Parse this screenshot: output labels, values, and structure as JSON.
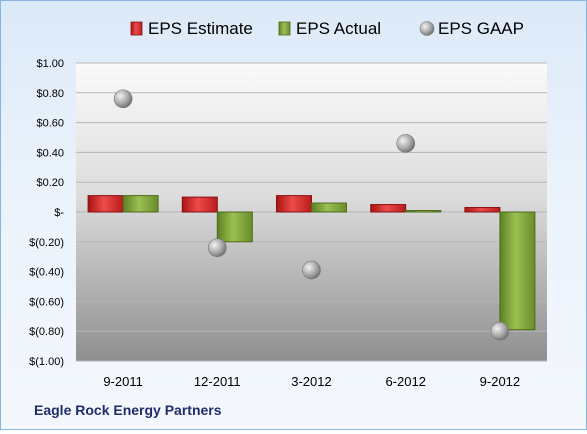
{
  "company_label": "Eagle Rock Energy Partners",
  "chart_data": {
    "type": "bar",
    "categories": [
      "9-2011",
      "12-2011",
      "3-2012",
      "6-2012",
      "9-2012"
    ],
    "series": [
      {
        "name": "EPS Estimate",
        "kind": "bar",
        "color": "#d42a2a",
        "values": [
          0.11,
          0.1,
          0.11,
          0.05,
          0.03
        ]
      },
      {
        "name": "EPS Actual",
        "kind": "bar",
        "color": "#7ea03a",
        "values": [
          0.11,
          -0.2,
          0.06,
          0.01,
          -0.79
        ]
      },
      {
        "name": "EPS GAAP",
        "kind": "scatter",
        "color": "#a6a6a6",
        "values": [
          0.76,
          -0.24,
          -0.39,
          0.46,
          -0.8
        ]
      }
    ],
    "ylim": [
      -1.0,
      1.0
    ],
    "yticks": [
      1.0,
      0.8,
      0.6,
      0.4,
      0.2,
      0.0,
      -0.2,
      -0.4,
      -0.6,
      -0.8,
      -1.0
    ],
    "ytick_labels": [
      "$1.00",
      "$0.80",
      "$0.60",
      "$0.40",
      "$0.20",
      "$-",
      "$(0.20)",
      "$(0.40)",
      "$(0.60)",
      "$(0.80)",
      "$(1.00)"
    ],
    "legend_position": "top",
    "grid": true,
    "xlabel": "",
    "ylabel": ""
  }
}
